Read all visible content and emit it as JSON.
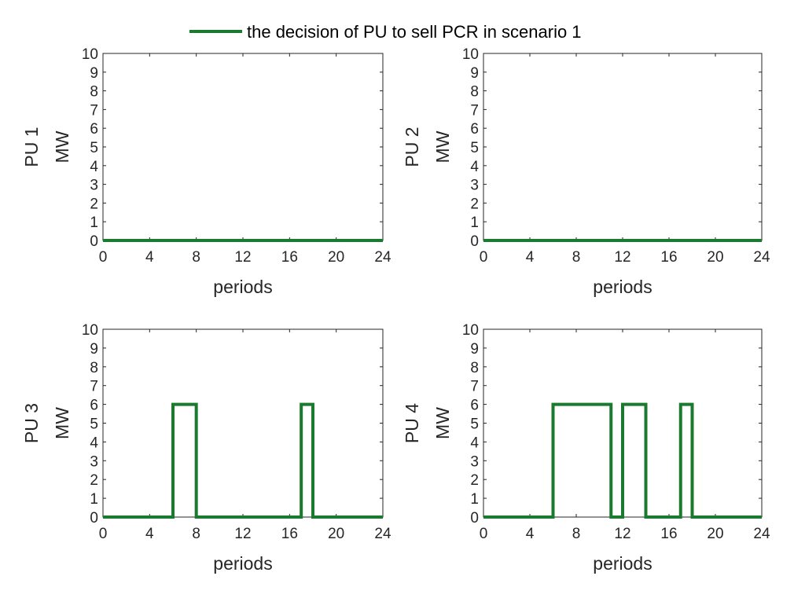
{
  "legend": {
    "label": "the decision of PU to sell PCR in scenario 1",
    "color": "#1a7a2e"
  },
  "chart_data": [
    {
      "type": "line",
      "step": true,
      "ylabel_top": "PU 1",
      "ylabel_bottom": "MW",
      "xlabel": "periods",
      "xlim": [
        0,
        24
      ],
      "ylim": [
        0,
        10
      ],
      "xticks": [
        0,
        4,
        8,
        12,
        16,
        20,
        24
      ],
      "yticks": [
        0,
        1,
        2,
        3,
        4,
        5,
        6,
        7,
        8,
        9,
        10
      ],
      "series": [
        {
          "name": "the decision of PU to sell PCR in scenario 1",
          "points": [
            [
              0,
              0
            ],
            [
              24,
              0
            ]
          ]
        }
      ]
    },
    {
      "type": "line",
      "step": true,
      "ylabel_top": "PU 2",
      "ylabel_bottom": "MW",
      "xlabel": "periods",
      "xlim": [
        0,
        24
      ],
      "ylim": [
        0,
        10
      ],
      "xticks": [
        0,
        4,
        8,
        12,
        16,
        20,
        24
      ],
      "yticks": [
        0,
        1,
        2,
        3,
        4,
        5,
        6,
        7,
        8,
        9,
        10
      ],
      "series": [
        {
          "name": "the decision of PU to sell PCR in scenario 1",
          "points": [
            [
              0,
              0
            ],
            [
              24,
              0
            ]
          ]
        }
      ]
    },
    {
      "type": "line",
      "step": true,
      "ylabel_top": "PU 3",
      "ylabel_bottom": "MW",
      "xlabel": "periods",
      "xlim": [
        0,
        24
      ],
      "ylim": [
        0,
        10
      ],
      "xticks": [
        0,
        4,
        8,
        12,
        16,
        20,
        24
      ],
      "yticks": [
        0,
        1,
        2,
        3,
        4,
        5,
        6,
        7,
        8,
        9,
        10
      ],
      "series": [
        {
          "name": "the decision of PU to sell PCR in scenario 1",
          "points": [
            [
              0,
              0
            ],
            [
              6,
              0
            ],
            [
              6,
              6
            ],
            [
              8,
              6
            ],
            [
              8,
              0
            ],
            [
              17,
              0
            ],
            [
              17,
              6
            ],
            [
              18,
              6
            ],
            [
              18,
              0
            ],
            [
              24,
              0
            ]
          ]
        }
      ]
    },
    {
      "type": "line",
      "step": true,
      "ylabel_top": "PU 4",
      "ylabel_bottom": "MW",
      "xlabel": "periods",
      "xlim": [
        0,
        24
      ],
      "ylim": [
        0,
        10
      ],
      "xticks": [
        0,
        4,
        8,
        12,
        16,
        20,
        24
      ],
      "yticks": [
        0,
        1,
        2,
        3,
        4,
        5,
        6,
        7,
        8,
        9,
        10
      ],
      "series": [
        {
          "name": "the decision of PU to sell PCR in scenario 1",
          "points": [
            [
              0,
              0
            ],
            [
              6,
              0
            ],
            [
              6,
              6
            ],
            [
              11,
              6
            ],
            [
              11,
              0
            ],
            [
              12,
              0
            ],
            [
              12,
              6
            ],
            [
              14,
              6
            ],
            [
              14,
              0
            ],
            [
              17,
              0
            ],
            [
              17,
              6
            ],
            [
              18,
              6
            ],
            [
              18,
              0
            ],
            [
              24,
              0
            ]
          ]
        }
      ]
    }
  ]
}
